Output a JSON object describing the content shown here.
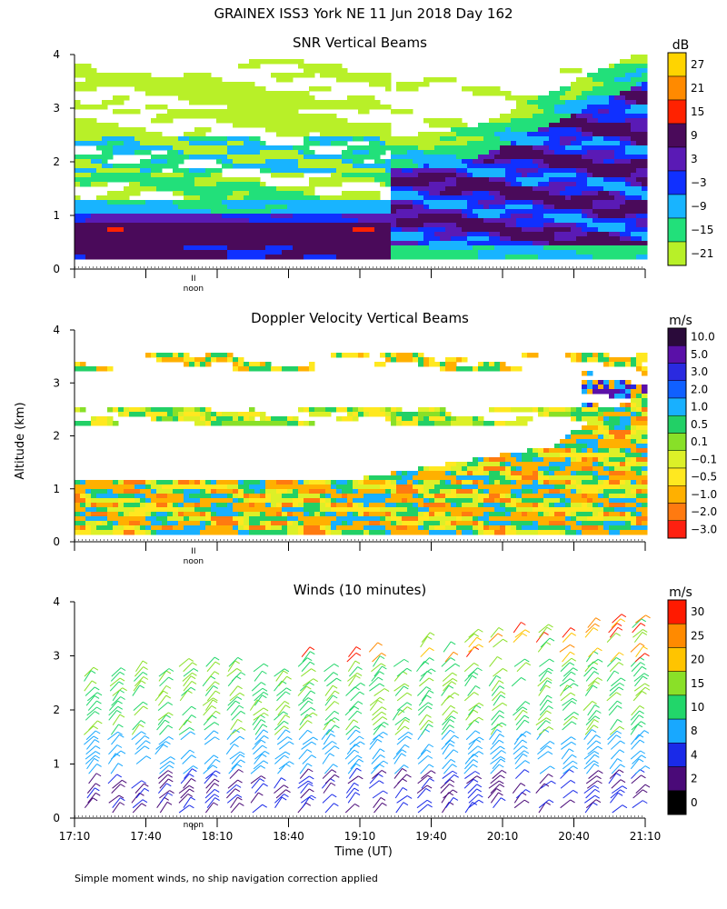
{
  "title": "GRAINEX ISS3 York NE  11 Jun 2018 Day 162",
  "ylabel": "Altitude (km)",
  "xlabel": "Time (UT)",
  "footnote": "Simple moment winds, no ship navigation correction applied",
  "noon_label": "noon",
  "noon_marker": "II",
  "chart_data": [
    {
      "type": "heatmap",
      "title": "SNR Vertical Beams",
      "units": "dB",
      "x_range_minutes": [
        0,
        240
      ],
      "ylim": [
        0,
        4
      ],
      "yticks": [
        0,
        1,
        2,
        3,
        4
      ],
      "colorbar": {
        "labels": [
          "27",
          "21",
          "15",
          "9",
          "3",
          "−3",
          "−9",
          "−15",
          "−21"
        ],
        "colors": [
          "#ffd400",
          "#ff8a00",
          "#ff2200",
          "#4a0a5a",
          "#5a1ab5",
          "#1030ff",
          "#18b4ff",
          "#22e07a",
          "#b8f028"
        ]
      },
      "field": "snr",
      "noon_marker_minutes": 50,
      "show_xtick_labels": false
    },
    {
      "type": "heatmap",
      "title": "Doppler Velocity Vertical Beams",
      "units": "m/s",
      "x_range_minutes": [
        0,
        240
      ],
      "ylim": [
        0,
        4
      ],
      "yticks": [
        0,
        1,
        2,
        3,
        4
      ],
      "colorbar": {
        "labels": [
          "10.0",
          "5.0",
          "3.0",
          "2.0",
          "1.0",
          "0.5",
          "0.1",
          "−0.1",
          "−0.5",
          "−1.0",
          "−2.0",
          "−3.0"
        ],
        "colors": [
          "#2a0a3a",
          "#5a10a8",
          "#2a2ae0",
          "#1060ff",
          "#18b0ff",
          "#22d066",
          "#88e028",
          "#dcf028",
          "#ffe820",
          "#ffb000",
          "#ff7a10",
          "#ff2010"
        ]
      },
      "field": "velocity",
      "noon_marker_minutes": 50,
      "show_xtick_labels": false
    },
    {
      "type": "wind_barbs",
      "title": "Winds (10 minutes)",
      "units": "m/s",
      "x_range_minutes": [
        0,
        240
      ],
      "ylim": [
        0,
        4
      ],
      "yticks": [
        0,
        1,
        2,
        3,
        4
      ],
      "xtick_labels": [
        "17:10",
        "17:40",
        "18:10",
        "18:40",
        "19:10",
        "19:40",
        "20:10",
        "20:40",
        "21:10"
      ],
      "xtick_minutes": [
        0,
        30,
        60,
        90,
        120,
        150,
        180,
        210,
        240
      ],
      "colorbar": {
        "labels": [
          "30",
          "25",
          "20",
          "15",
          "10",
          "8",
          "4",
          "2",
          "0"
        ],
        "colors": [
          "#ff1a00",
          "#ff8a00",
          "#ffc400",
          "#8ae028",
          "#22d66a",
          "#18a8ff",
          "#1a2ae8",
          "#4a0a78",
          "#000000"
        ]
      },
      "barb_columns_minutes": [
        5,
        15,
        25,
        35,
        45,
        55,
        65,
        75,
        85,
        95,
        105,
        115,
        125,
        135,
        145,
        155,
        165,
        175,
        185,
        195,
        205,
        215,
        225,
        235
      ],
      "noon_marker_minutes": 50
    }
  ]
}
